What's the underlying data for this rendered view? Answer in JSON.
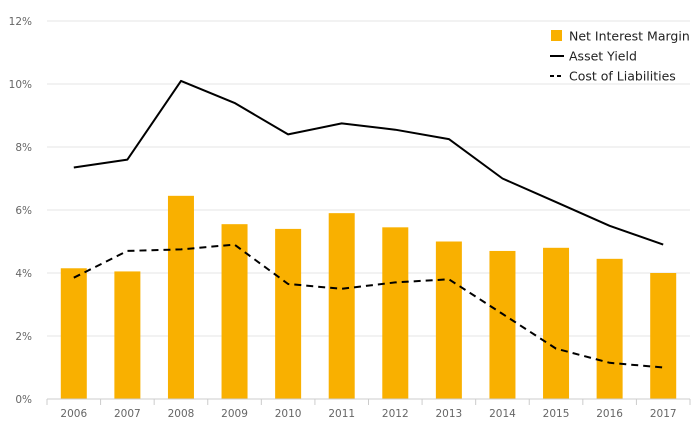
{
  "chart_data": {
    "type": "bar",
    "categories": [
      "2006",
      "2007",
      "2008",
      "2009",
      "2010",
      "2011",
      "2012",
      "2013",
      "2014",
      "2015",
      "2016",
      "2017"
    ],
    "ylim": [
      0,
      12
    ],
    "yticks": [
      0,
      2,
      4,
      6,
      8,
      10,
      12
    ],
    "ytick_labels": [
      "0%",
      "2%",
      "4%",
      "6%",
      "8%",
      "10%",
      "12%"
    ],
    "grid": "horizontal",
    "legend_position": "top-right",
    "series": [
      {
        "name": "Net Interest Margin",
        "type": "bar",
        "color": "#F9B000",
        "values": [
          4.15,
          4.05,
          6.45,
          5.55,
          5.4,
          5.9,
          5.45,
          5.0,
          4.7,
          4.8,
          4.45,
          4.0
        ]
      },
      {
        "name": "Asset Yield",
        "type": "line",
        "style": "solid",
        "color": "#000000",
        "values": [
          7.35,
          7.6,
          10.1,
          9.4,
          8.4,
          8.75,
          8.55,
          8.25,
          7.0,
          6.25,
          5.5,
          4.9
        ]
      },
      {
        "name": "Cost of Liabilities",
        "type": "line",
        "style": "dashed",
        "color": "#000000",
        "values": [
          3.85,
          4.7,
          4.75,
          4.9,
          3.65,
          3.5,
          3.7,
          3.8,
          2.7,
          1.6,
          1.15,
          1.0
        ]
      }
    ]
  }
}
